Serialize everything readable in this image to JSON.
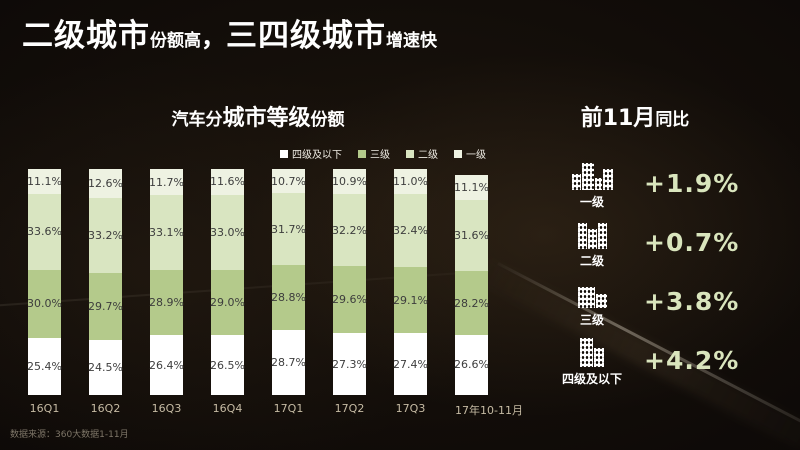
{
  "headline": {
    "part1_big": "二级城市",
    "part1_small": "份额高",
    "comma": "，",
    "part2_big": "三四级城市",
    "part2_small": "增速快"
  },
  "chart": {
    "title_prefix": "汽车分",
    "title_main": "城市等级",
    "title_suffix": "份额",
    "legend": [
      {
        "label": "四级及以下",
        "color": "#ffffff"
      },
      {
        "label": "三级",
        "color": "#b4ca8b"
      },
      {
        "label": "二级",
        "color": "#d9e5c1"
      },
      {
        "label": "一级",
        "color": "#eef2e2"
      }
    ]
  },
  "chart_data": {
    "type": "bar",
    "stacked": true,
    "title": "汽车分城市等级份额",
    "categories": [
      "16Q1",
      "16Q2",
      "16Q3",
      "16Q4",
      "17Q1",
      "17Q2",
      "17Q3",
      "17年10-11月"
    ],
    "series": [
      {
        "name": "四级及以下",
        "color": "#ffffff",
        "values": [
          25.4,
          24.5,
          26.4,
          26.5,
          28.7,
          27.3,
          27.4,
          26.6
        ]
      },
      {
        "name": "三级",
        "color": "#b4ca8b",
        "values": [
          30.0,
          29.7,
          28.9,
          29.0,
          28.8,
          29.6,
          29.1,
          28.2
        ]
      },
      {
        "name": "二级",
        "color": "#d9e5c1",
        "values": [
          33.6,
          33.2,
          33.1,
          33.0,
          31.7,
          32.2,
          32.4,
          31.6
        ]
      },
      {
        "name": "一级",
        "color": "#eef2e2",
        "values": [
          11.1,
          12.6,
          11.7,
          11.6,
          10.7,
          10.9,
          11.0,
          11.1
        ]
      }
    ],
    "value_suffix": "%",
    "ylim": [
      0,
      100
    ],
    "grid": false,
    "legend_position": "top-right",
    "label_color": "#3d3d3d"
  },
  "right_panel": {
    "title_big": "前11月",
    "title_small": "同比",
    "value_color": "#d9e5bd",
    "rows": [
      {
        "label": "一级",
        "value": "+1.9%",
        "icon": "tier1-city-icon"
      },
      {
        "label": "二级",
        "value": "+0.7%",
        "icon": "tier2-city-icon"
      },
      {
        "label": "三级",
        "value": "+3.8%",
        "icon": "tier3-city-icon"
      },
      {
        "label": "四级及以下",
        "value": "+4.2%",
        "icon": "tier4-city-icon"
      }
    ]
  },
  "footer": {
    "source": "数据来源：360大数据1-11月"
  }
}
